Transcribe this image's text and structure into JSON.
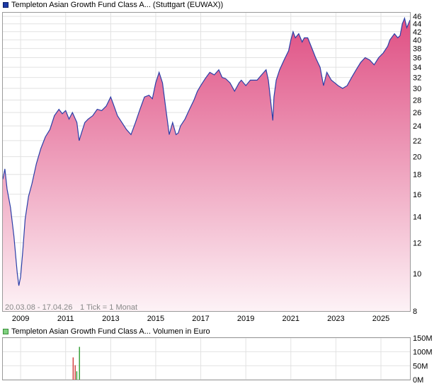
{
  "legend": {
    "price": "Templeton Asian Growth Fund Class A... (Stuttgart (EUWAX))",
    "volume": "Templeton Asian Growth Fund Class A... Volumen in Euro"
  },
  "info": {
    "range": "20.03.08 - 17.04.26",
    "tick": "1 Tick = 1 Monat"
  },
  "colors": {
    "line": "#2b3fa8",
    "fill_top": "#df4f83",
    "fill_bottom": "#fdf2f6",
    "grid": "#e2e2e2",
    "volume_buy": "#2e9a2e",
    "volume_sell": "#d23a3a"
  },
  "chart_data": [
    {
      "type": "area",
      "scale": "log",
      "ylim": [
        8,
        47
      ],
      "xlim": [
        2008.21,
        2026.29
      ],
      "x_ticks": [
        "2009",
        "2011",
        "2013",
        "2015",
        "2017",
        "2019",
        "2021",
        "2023",
        "2025"
      ],
      "y_ticks": [
        8,
        10,
        12,
        14,
        16,
        18,
        20,
        22,
        24,
        26,
        28,
        30,
        32,
        34,
        36,
        38,
        40,
        42,
        44,
        46
      ],
      "grid": true,
      "x": [
        2008.21,
        2008.3,
        2008.4,
        2008.55,
        2008.7,
        2008.85,
        2008.92,
        2009.0,
        2009.1,
        2009.2,
        2009.35,
        2009.5,
        2009.7,
        2009.9,
        2010.1,
        2010.3,
        2010.5,
        2010.7,
        2010.85,
        2011.0,
        2011.15,
        2011.3,
        2011.5,
        2011.6,
        2011.7,
        2011.85,
        2012.0,
        2012.2,
        2012.4,
        2012.6,
        2012.8,
        2013.0,
        2013.1,
        2013.3,
        2013.5,
        2013.7,
        2013.9,
        2014.1,
        2014.3,
        2014.5,
        2014.7,
        2014.85,
        2015.0,
        2015.15,
        2015.3,
        2015.45,
        2015.6,
        2015.75,
        2015.9,
        2016.0,
        2016.1,
        2016.3,
        2016.5,
        2016.7,
        2016.85,
        2017.0,
        2017.2,
        2017.4,
        2017.6,
        2017.8,
        2017.95,
        2018.1,
        2018.3,
        2018.5,
        2018.7,
        2018.8,
        2019.0,
        2019.2,
        2019.35,
        2019.5,
        2019.7,
        2019.9,
        2020.0,
        2020.1,
        2020.2,
        2020.25,
        2020.35,
        2020.5,
        2020.7,
        2020.9,
        2021.0,
        2021.1,
        2021.2,
        2021.35,
        2021.5,
        2021.6,
        2021.75,
        2021.9,
        2022.1,
        2022.3,
        2022.45,
        2022.6,
        2022.8,
        2022.95,
        2023.1,
        2023.3,
        2023.5,
        2023.7,
        2023.9,
        2024.1,
        2024.3,
        2024.5,
        2024.7,
        2024.9,
        2025.1,
        2025.3,
        2025.4,
        2025.6,
        2025.75,
        2025.85,
        2025.95,
        2026.05,
        2026.15,
        2026.29
      ],
      "y": [
        17.5,
        18.6,
        16.5,
        14.8,
        12.5,
        10.0,
        9.3,
        9.8,
        11.5,
        13.8,
        15.8,
        17.0,
        19.2,
        21.0,
        22.5,
        23.5,
        25.5,
        26.5,
        25.8,
        26.3,
        25.0,
        26.0,
        24.5,
        22.0,
        23.0,
        24.5,
        25.0,
        25.5,
        26.5,
        26.3,
        27.0,
        28.5,
        27.5,
        25.5,
        24.5,
        23.5,
        22.8,
        24.5,
        26.5,
        28.5,
        28.8,
        28.2,
        31.0,
        33.0,
        31.0,
        26.5,
        22.8,
        24.5,
        22.8,
        23.0,
        24.0,
        25.0,
        26.5,
        28.0,
        29.5,
        30.5,
        31.8,
        33.0,
        32.5,
        33.5,
        32.0,
        31.8,
        31.0,
        29.5,
        31.0,
        31.5,
        30.5,
        31.5,
        31.5,
        31.5,
        32.5,
        33.5,
        31.5,
        28.0,
        24.8,
        28.5,
        31.5,
        33.5,
        35.5,
        37.5,
        40.0,
        42.0,
        40.5,
        41.5,
        39.5,
        40.5,
        40.5,
        38.5,
        36.0,
        34.0,
        30.5,
        33.0,
        31.5,
        31.0,
        30.5,
        30.0,
        30.5,
        32.0,
        33.5,
        35.0,
        36.0,
        35.5,
        34.5,
        36.0,
        37.0,
        38.5,
        40.0,
        41.5,
        40.5,
        41.0,
        44.0,
        45.5,
        43.0,
        45.0
      ]
    },
    {
      "type": "bar",
      "series": [
        {
          "x": [
            2011.33,
            2011.42
          ],
          "values": [
            80,
            52
          ],
          "color": "#d23a3a"
        },
        {
          "x": [
            2011.49,
            2011.61
          ],
          "values": [
            30,
            118
          ],
          "color": "#2e9a2e"
        }
      ],
      "ylim": [
        0,
        150
      ],
      "y_ticks": [
        "0M",
        "50M",
        "100M",
        "150M"
      ],
      "grid": true
    }
  ]
}
